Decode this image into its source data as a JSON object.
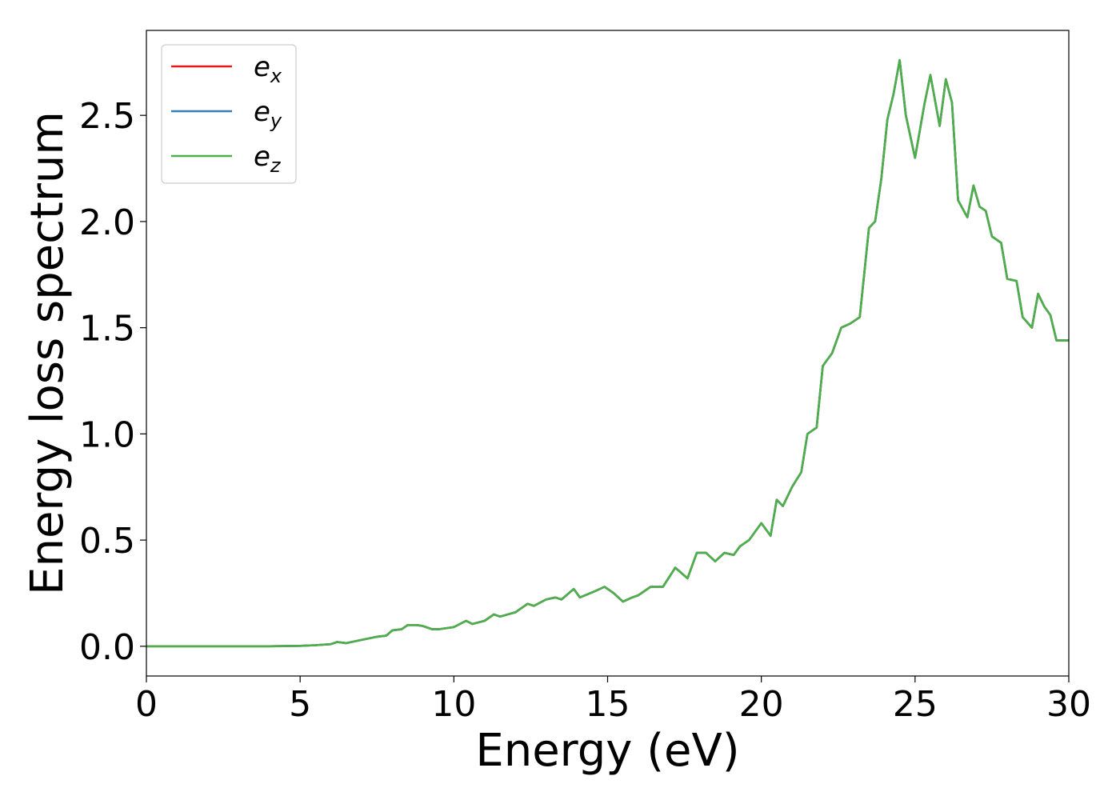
{
  "chart_data": {
    "type": "line",
    "xlabel": "Energy (eV)",
    "ylabel": "Energy loss spectrum",
    "xlim": [
      0,
      30
    ],
    "ylim": [
      -0.14,
      2.9
    ],
    "xticks": [
      0,
      5,
      10,
      15,
      20,
      25,
      30
    ],
    "xtick_labels": [
      "0",
      "5",
      "10",
      "15",
      "20",
      "25",
      "30"
    ],
    "yticks": [
      0.0,
      0.5,
      1.0,
      1.5,
      2.0,
      2.5
    ],
    "ytick_labels": [
      "0.0",
      "0.5",
      "1.0",
      "1.5",
      "2.0",
      "2.5"
    ],
    "grid": false,
    "legend_position": "top-left",
    "x": [
      0,
      1,
      2,
      3,
      4,
      5,
      5.5,
      6,
      6.2,
      6.5,
      7,
      7.5,
      7.8,
      8,
      8.3,
      8.5,
      8.8,
      9,
      9.3,
      9.5,
      10,
      10.4,
      10.6,
      11,
      11.3,
      11.5,
      12,
      12.4,
      12.6,
      13,
      13.3,
      13.5,
      13.9,
      14.1,
      14.6,
      14.9,
      15.2,
      15.5,
      15.8,
      16,
      16.4,
      16.8,
      17.2,
      17.6,
      17.9,
      18.2,
      18.5,
      18.8,
      19.1,
      19.3,
      19.6,
      20,
      20.3,
      20.5,
      20.7,
      21,
      21.3,
      21.5,
      21.8,
      22,
      22.3,
      22.6,
      22.9,
      23.2,
      23.5,
      23.7,
      23.9,
      24.1,
      24.3,
      24.5,
      24.7,
      25,
      25.3,
      25.5,
      25.8,
      26,
      26.2,
      26.4,
      26.7,
      26.9,
      27.1,
      27.3,
      27.5,
      27.8,
      28,
      28.3,
      28.5,
      28.8,
      29,
      29.2,
      29.4,
      29.6,
      29.8,
      30
    ],
    "series": [
      {
        "name": "e_x",
        "color": "#e41a1c",
        "values": [
          0,
          0,
          0,
          0,
          0,
          0.002,
          0.005,
          0.01,
          0.02,
          0.015,
          0.03,
          0.045,
          0.05,
          0.075,
          0.08,
          0.1,
          0.1,
          0.095,
          0.08,
          0.08,
          0.09,
          0.12,
          0.105,
          0.12,
          0.15,
          0.14,
          0.16,
          0.2,
          0.19,
          0.22,
          0.23,
          0.22,
          0.27,
          0.23,
          0.26,
          0.28,
          0.25,
          0.21,
          0.23,
          0.24,
          0.28,
          0.28,
          0.37,
          0.32,
          0.44,
          0.44,
          0.4,
          0.44,
          0.43,
          0.47,
          0.5,
          0.58,
          0.52,
          0.69,
          0.66,
          0.75,
          0.82,
          1.0,
          1.03,
          1.32,
          1.38,
          1.5,
          1.52,
          1.55,
          1.97,
          2.0,
          2.2,
          2.48,
          2.6,
          2.76,
          2.5,
          2.3,
          2.55,
          2.69,
          2.45,
          2.67,
          2.56,
          2.1,
          2.02,
          2.17,
          2.07,
          2.05,
          1.93,
          1.9,
          1.73,
          1.72,
          1.55,
          1.5,
          1.66,
          1.6,
          1.56,
          1.44,
          1.44,
          1.44
        ]
      },
      {
        "name": "e_y",
        "color": "#377eb8",
        "values": [
          0,
          0,
          0,
          0,
          0,
          0.002,
          0.005,
          0.01,
          0.02,
          0.015,
          0.03,
          0.045,
          0.05,
          0.075,
          0.08,
          0.1,
          0.1,
          0.095,
          0.08,
          0.08,
          0.09,
          0.12,
          0.105,
          0.12,
          0.15,
          0.14,
          0.16,
          0.2,
          0.19,
          0.22,
          0.23,
          0.22,
          0.27,
          0.23,
          0.26,
          0.28,
          0.25,
          0.21,
          0.23,
          0.24,
          0.28,
          0.28,
          0.37,
          0.32,
          0.44,
          0.44,
          0.4,
          0.44,
          0.43,
          0.47,
          0.5,
          0.58,
          0.52,
          0.69,
          0.66,
          0.75,
          0.82,
          1.0,
          1.03,
          1.32,
          1.38,
          1.5,
          1.52,
          1.55,
          1.97,
          2.0,
          2.2,
          2.48,
          2.6,
          2.76,
          2.5,
          2.3,
          2.55,
          2.69,
          2.45,
          2.67,
          2.56,
          2.1,
          2.02,
          2.17,
          2.07,
          2.05,
          1.93,
          1.9,
          1.73,
          1.72,
          1.55,
          1.5,
          1.66,
          1.6,
          1.56,
          1.44,
          1.44,
          1.44
        ]
      },
      {
        "name": "e_z",
        "color": "#4daf4a",
        "values": [
          0,
          0,
          0,
          0,
          0,
          0.002,
          0.005,
          0.01,
          0.02,
          0.015,
          0.03,
          0.045,
          0.05,
          0.075,
          0.08,
          0.1,
          0.1,
          0.095,
          0.08,
          0.08,
          0.09,
          0.12,
          0.105,
          0.12,
          0.15,
          0.14,
          0.16,
          0.2,
          0.19,
          0.22,
          0.23,
          0.22,
          0.27,
          0.23,
          0.26,
          0.28,
          0.25,
          0.21,
          0.23,
          0.24,
          0.28,
          0.28,
          0.37,
          0.32,
          0.44,
          0.44,
          0.4,
          0.44,
          0.43,
          0.47,
          0.5,
          0.58,
          0.52,
          0.69,
          0.66,
          0.75,
          0.82,
          1.0,
          1.03,
          1.32,
          1.38,
          1.5,
          1.52,
          1.55,
          1.97,
          2.0,
          2.2,
          2.48,
          2.6,
          2.76,
          2.5,
          2.3,
          2.55,
          2.69,
          2.45,
          2.67,
          2.56,
          2.1,
          2.02,
          2.17,
          2.07,
          2.05,
          1.93,
          1.9,
          1.73,
          1.72,
          1.55,
          1.5,
          1.66,
          1.6,
          1.56,
          1.44,
          1.44,
          1.44
        ]
      }
    ],
    "legend": [
      {
        "base": "e",
        "sub": "x",
        "color": "#e41a1c"
      },
      {
        "base": "e",
        "sub": "y",
        "color": "#377eb8"
      },
      {
        "base": "e",
        "sub": "z",
        "color": "#4daf4a"
      }
    ]
  }
}
